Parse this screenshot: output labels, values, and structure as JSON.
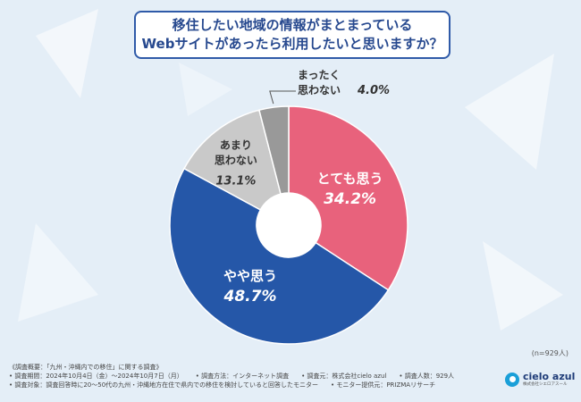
{
  "title": {
    "line1": "移住したい地域の情報がまとまっている",
    "line2": "Webサイトがあったら利用したいと思いますか？"
  },
  "chart_data": {
    "type": "pie",
    "title": "移住したい地域の情報がまとまっているWebサイトがあったら利用したいと思いますか？",
    "unit": "%",
    "categories": [
      "とても思う",
      "やや思う",
      "あまり思わない",
      "まったく思わない"
    ],
    "values": [
      34.2,
      48.7,
      13.1,
      4.0
    ],
    "value_labels": [
      "34.2%",
      "48.7%",
      "13.1%",
      "4.0%"
    ],
    "colors": [
      "#e8627c",
      "#2557a8",
      "#c9c9c9",
      "#999999"
    ],
    "label_lines": [
      [
        "とても思う"
      ],
      [
        "やや思う"
      ],
      [
        "あまり",
        "思わない"
      ],
      [
        "まったく",
        "思わない"
      ]
    ],
    "donut": true,
    "sample_note": "(n=929人)"
  },
  "footer": {
    "row1": [
      "《調査概要：「九州・沖縄内での移住」に関する調査》"
    ],
    "row2": [
      "• 調査期間：2024年10月4日（金）～2024年10月7日（月）",
      "• 調査方法：インターネット調査",
      "• 調査元：株式会社cielo azul",
      "• 調査人数：929人"
    ],
    "row3": [
      "• 調査対象：調査回答時に20～50代の九州・沖縄地方在住で県内での移住を検討していると回答したモニター",
      "• モニター提供元：PRIZMAリサーチ"
    ]
  },
  "logo": {
    "name": "cielo azul",
    "sub": "株式会社シエロアスール"
  }
}
